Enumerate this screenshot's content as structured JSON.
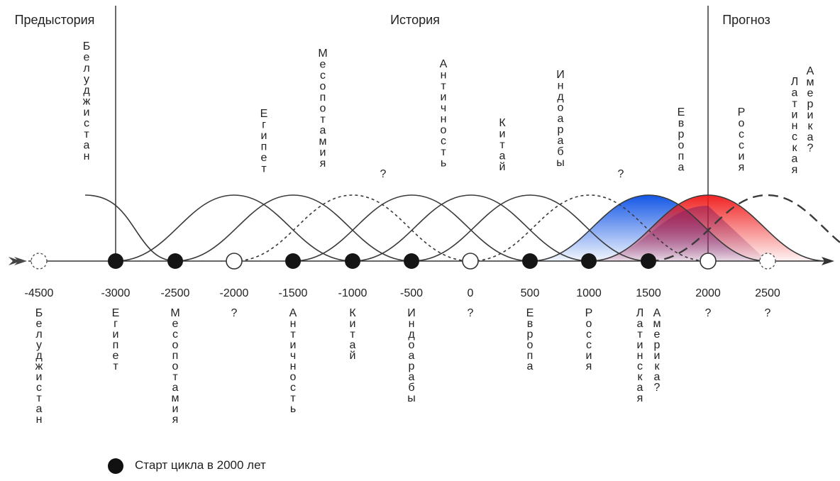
{
  "sections": {
    "prehistory": "Предыстория",
    "history": "История",
    "forecast": "Прогноз"
  },
  "ticks": [
    {
      "label": "-4500",
      "name": "Белуджистан",
      "marker": "dashed"
    },
    {
      "label": "-3000",
      "name": "Египет",
      "marker": "filled"
    },
    {
      "label": "-2500",
      "name": "Месопотамия",
      "marker": "filled"
    },
    {
      "label": "-2000",
      "name": "?",
      "marker": "open"
    },
    {
      "label": "-1500",
      "name": "Античность",
      "marker": "filled"
    },
    {
      "label": "-1000",
      "name": "Китай",
      "marker": "filled"
    },
    {
      "label": "-500",
      "name": "Индоарабы",
      "marker": "filled"
    },
    {
      "label": "0",
      "name": "?",
      "marker": "open"
    },
    {
      "label": "500",
      "name": "Европа",
      "marker": "filled"
    },
    {
      "label": "1000",
      "name": "Россия",
      "marker": "filled"
    },
    {
      "label": "1500",
      "name": "Латинская Америка?",
      "marker": "filled"
    },
    {
      "label": "2000",
      "name": "?",
      "marker": "open"
    },
    {
      "label": "2500",
      "name": "?",
      "marker": "dashed"
    }
  ],
  "curves": [
    {
      "name": "Белуджистан",
      "start": -4500,
      "style": "solid",
      "fill": "none"
    },
    {
      "name": "Египет",
      "start": -3000,
      "style": "solid",
      "fill": "none"
    },
    {
      "name": "Месопотамия",
      "start": -2500,
      "style": "solid",
      "fill": "none"
    },
    {
      "name": "?",
      "start": -2000,
      "style": "dotted",
      "fill": "none"
    },
    {
      "name": "Античность",
      "start": -1500,
      "style": "solid",
      "fill": "none"
    },
    {
      "name": "Китай",
      "start": -1000,
      "style": "solid",
      "fill": "none"
    },
    {
      "name": "Индоарабы",
      "start": -500,
      "style": "solid",
      "fill": "none"
    },
    {
      "name": "?",
      "start": 0,
      "style": "dotted",
      "fill": "none"
    },
    {
      "name": "Европа",
      "start": 500,
      "style": "solid",
      "fill": "blue"
    },
    {
      "name": "Россия",
      "start": 1000,
      "style": "solid",
      "fill": "red"
    },
    {
      "name": "Латинская Америка?",
      "start": 1500,
      "style": "dashed",
      "fill": "none"
    }
  ],
  "legend": {
    "label": "Старт цикла в 2000 лет"
  },
  "colors": {
    "line": "#3a3a3a",
    "blue": "#1e63e8",
    "red": "#ee1c1c",
    "purple": "#7a2a66"
  }
}
